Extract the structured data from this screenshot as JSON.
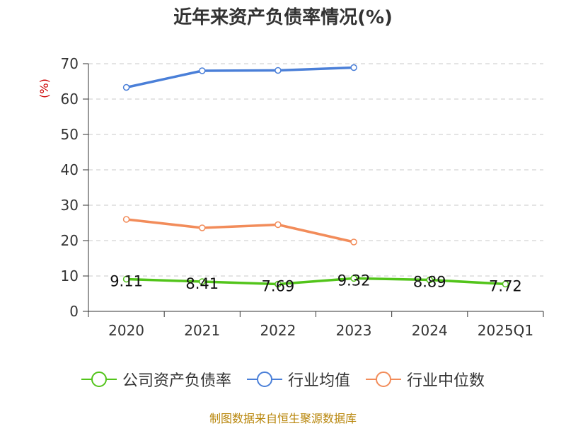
{
  "chart_data": {
    "type": "line",
    "title": "近年来资产负债率情况(%)",
    "ylabel": "(%)",
    "xlabel": "",
    "categories": [
      "2020",
      "2021",
      "2022",
      "2023",
      "2024",
      "2025Q1"
    ],
    "ylim": [
      0,
      70
    ],
    "yticks": [
      0,
      10,
      20,
      30,
      40,
      50,
      60,
      70
    ],
    "grid": true,
    "legend_position": "bottom",
    "series": [
      {
        "name": "公司资产负债率",
        "color": "#52c41a",
        "values": [
          9.11,
          8.41,
          7.69,
          9.32,
          8.89,
          7.72
        ],
        "labels": [
          "9.11",
          "8.41",
          "7.69",
          "9.32",
          "8.89",
          "7.72"
        ]
      },
      {
        "name": "行业均值",
        "color": "#4a7fd8",
        "values": [
          63.3,
          68.0,
          68.1,
          68.9,
          null,
          null
        ]
      },
      {
        "name": "行业中位数",
        "color": "#f28c5a",
        "values": [
          26.0,
          23.6,
          24.5,
          19.6,
          null,
          null
        ]
      }
    ]
  },
  "source": "制图数据来自恒生聚源数据库"
}
